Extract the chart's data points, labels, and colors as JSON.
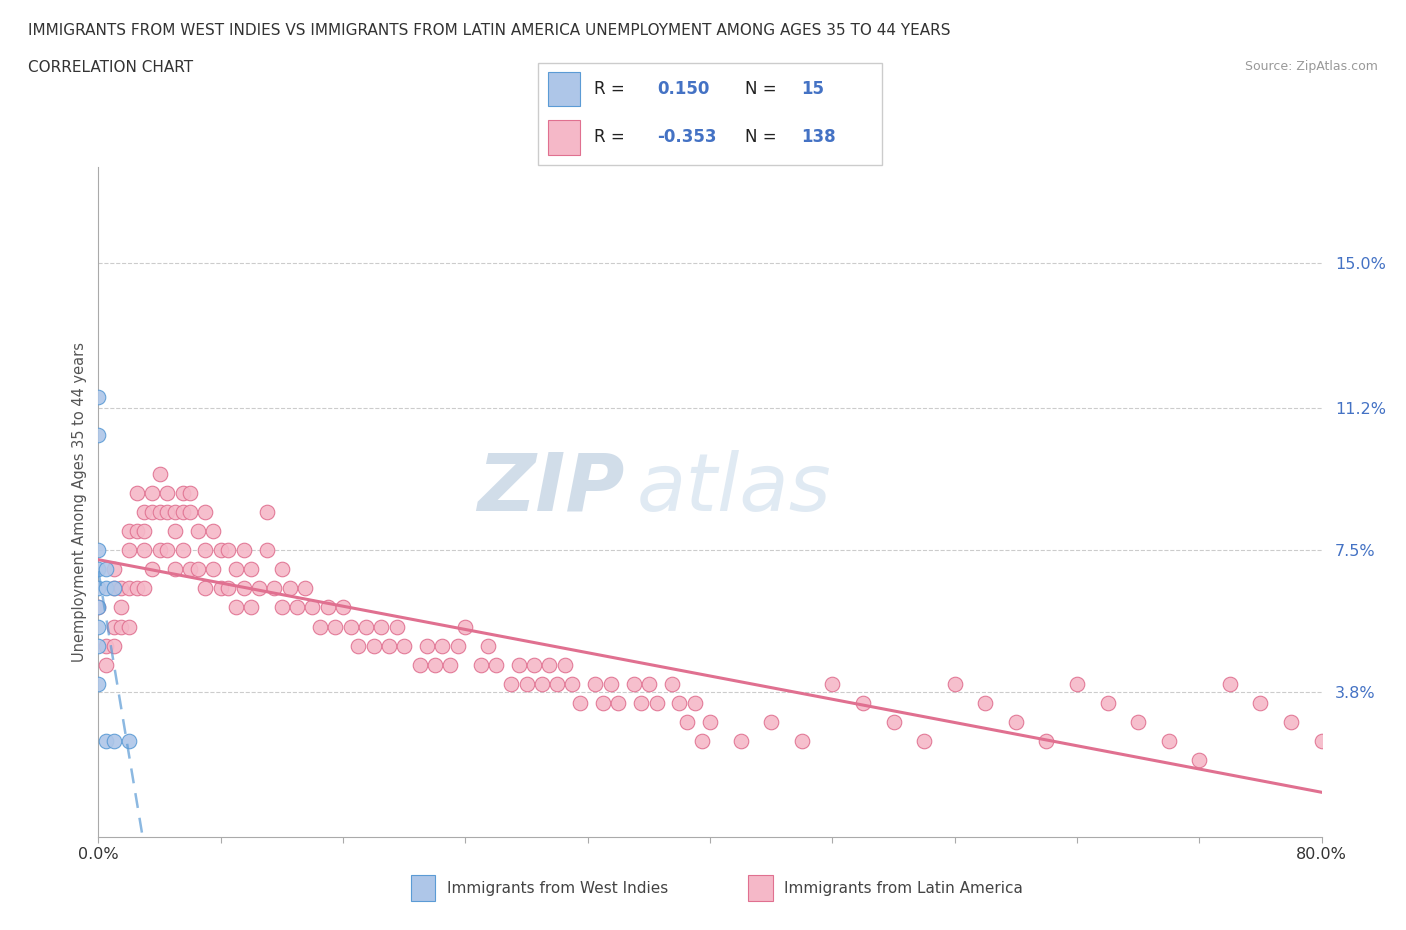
{
  "title_line1": "IMMIGRANTS FROM WEST INDIES VS IMMIGRANTS FROM LATIN AMERICA UNEMPLOYMENT AMONG AGES 35 TO 44 YEARS",
  "title_line2": "CORRELATION CHART",
  "source_text": "Source: ZipAtlas.com",
  "ylabel": "Unemployment Among Ages 35 to 44 years",
  "xmin": 0.0,
  "xmax": 0.8,
  "ymin": 0.0,
  "ymax": 0.175,
  "yticks": [
    0.038,
    0.075,
    0.112,
    0.15
  ],
  "ytick_labels": [
    "3.8%",
    "7.5%",
    "11.2%",
    "15.0%"
  ],
  "xticks": [
    0.0,
    0.08,
    0.16,
    0.24,
    0.32,
    0.4,
    0.48,
    0.56,
    0.64,
    0.72,
    0.8
  ],
  "west_indies_color": "#aec6e8",
  "latin_america_color": "#f5b8c8",
  "west_indies_edge": "#5b9bd5",
  "latin_america_edge": "#e07090",
  "trend_west_color": "#5b9bd5",
  "trend_latin_color": "#e07090",
  "R_west": 0.15,
  "N_west": 15,
  "R_latin": -0.353,
  "N_latin": 138,
  "legend_label_west": "Immigrants from West Indies",
  "legend_label_latin": "Immigrants from Latin America",
  "watermark_zip": "ZIP",
  "watermark_atlas": "atlas",
  "grid_color": "#cccccc",
  "west_indies_x": [
    0.0,
    0.0,
    0.0,
    0.0,
    0.0,
    0.0,
    0.0,
    0.0,
    0.0,
    0.005,
    0.005,
    0.005,
    0.01,
    0.01,
    0.02
  ],
  "west_indies_y": [
    0.115,
    0.105,
    0.075,
    0.07,
    0.065,
    0.06,
    0.055,
    0.05,
    0.04,
    0.07,
    0.065,
    0.025,
    0.065,
    0.025,
    0.025
  ],
  "latin_america_x": [
    0.0,
    0.005,
    0.005,
    0.01,
    0.01,
    0.01,
    0.01,
    0.015,
    0.015,
    0.015,
    0.02,
    0.02,
    0.02,
    0.02,
    0.025,
    0.025,
    0.025,
    0.03,
    0.03,
    0.03,
    0.03,
    0.035,
    0.035,
    0.035,
    0.04,
    0.04,
    0.04,
    0.045,
    0.045,
    0.045,
    0.05,
    0.05,
    0.05,
    0.055,
    0.055,
    0.055,
    0.06,
    0.06,
    0.06,
    0.065,
    0.065,
    0.07,
    0.07,
    0.07,
    0.075,
    0.075,
    0.08,
    0.08,
    0.085,
    0.085,
    0.09,
    0.09,
    0.095,
    0.095,
    0.1,
    0.1,
    0.105,
    0.11,
    0.11,
    0.115,
    0.12,
    0.12,
    0.125,
    0.13,
    0.135,
    0.14,
    0.145,
    0.15,
    0.155,
    0.16,
    0.165,
    0.17,
    0.175,
    0.18,
    0.185,
    0.19,
    0.195,
    0.2,
    0.21,
    0.215,
    0.22,
    0.225,
    0.23,
    0.235,
    0.24,
    0.25,
    0.255,
    0.26,
    0.27,
    0.275,
    0.28,
    0.285,
    0.29,
    0.295,
    0.3,
    0.305,
    0.31,
    0.315,
    0.325,
    0.33,
    0.335,
    0.34,
    0.35,
    0.355,
    0.36,
    0.365,
    0.375,
    0.38,
    0.385,
    0.39,
    0.395,
    0.4,
    0.42,
    0.44,
    0.46,
    0.48,
    0.5,
    0.52,
    0.54,
    0.56,
    0.58,
    0.6,
    0.62,
    0.64,
    0.66,
    0.68,
    0.7,
    0.72,
    0.74,
    0.76,
    0.78,
    0.8
  ],
  "latin_america_y": [
    0.06,
    0.05,
    0.045,
    0.07,
    0.065,
    0.055,
    0.05,
    0.065,
    0.06,
    0.055,
    0.08,
    0.075,
    0.065,
    0.055,
    0.09,
    0.08,
    0.065,
    0.085,
    0.08,
    0.075,
    0.065,
    0.09,
    0.085,
    0.07,
    0.095,
    0.085,
    0.075,
    0.09,
    0.085,
    0.075,
    0.085,
    0.08,
    0.07,
    0.09,
    0.085,
    0.075,
    0.09,
    0.085,
    0.07,
    0.08,
    0.07,
    0.085,
    0.075,
    0.065,
    0.08,
    0.07,
    0.075,
    0.065,
    0.075,
    0.065,
    0.07,
    0.06,
    0.075,
    0.065,
    0.07,
    0.06,
    0.065,
    0.085,
    0.075,
    0.065,
    0.07,
    0.06,
    0.065,
    0.06,
    0.065,
    0.06,
    0.055,
    0.06,
    0.055,
    0.06,
    0.055,
    0.05,
    0.055,
    0.05,
    0.055,
    0.05,
    0.055,
    0.05,
    0.045,
    0.05,
    0.045,
    0.05,
    0.045,
    0.05,
    0.055,
    0.045,
    0.05,
    0.045,
    0.04,
    0.045,
    0.04,
    0.045,
    0.04,
    0.045,
    0.04,
    0.045,
    0.04,
    0.035,
    0.04,
    0.035,
    0.04,
    0.035,
    0.04,
    0.035,
    0.04,
    0.035,
    0.04,
    0.035,
    0.03,
    0.035,
    0.025,
    0.03,
    0.025,
    0.03,
    0.025,
    0.04,
    0.035,
    0.03,
    0.025,
    0.04,
    0.035,
    0.03,
    0.025,
    0.04,
    0.035,
    0.03,
    0.025,
    0.02,
    0.04,
    0.035,
    0.03,
    0.025
  ]
}
